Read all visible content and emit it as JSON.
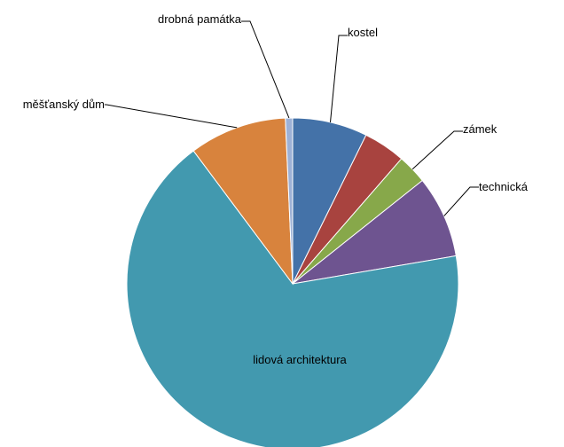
{
  "chart_data": {
    "type": "pie",
    "title": "",
    "slices": [
      {
        "label": "kostel",
        "value": 7.3,
        "color": "#4472A8"
      },
      {
        "label": "",
        "value": 4.1,
        "color": "#A8433F"
      },
      {
        "label": "zámek",
        "value": 2.9,
        "color": "#87A84A"
      },
      {
        "label": "technická",
        "value": 8.0,
        "color": "#6E5490"
      },
      {
        "label": "lidová architektura",
        "value": 67.5,
        "color": "#4299AF"
      },
      {
        "label": "měšťanský dům",
        "value": 9.5,
        "color": "#D8833D"
      },
      {
        "label": "drobná památka",
        "value": 0.7,
        "color": "#9DB1D6"
      }
    ],
    "legend": "none"
  }
}
